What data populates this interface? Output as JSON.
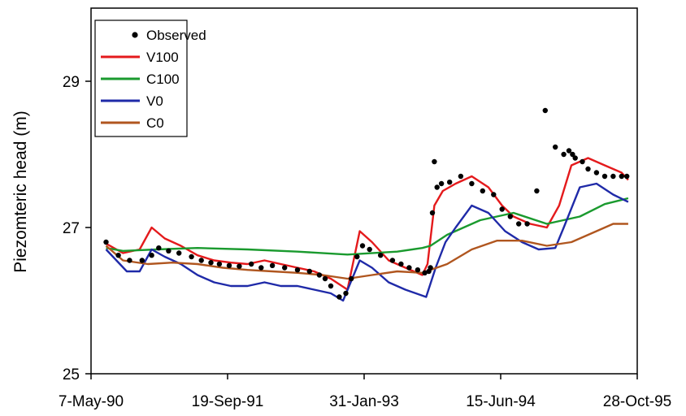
{
  "chart_data": {
    "type": "line",
    "title": "",
    "xlabel": "",
    "ylabel": "Piezomteric head (m)",
    "ylim": [
      25,
      30
    ],
    "yticks": [
      25,
      27,
      29
    ],
    "xlim": [
      "1990-05-07",
      "1995-10-28"
    ],
    "xtick_labels": [
      "7-May-90",
      "19-Sep-91",
      "31-Jan-93",
      "15-Jun-94",
      "28-Oct-95"
    ],
    "xtick_dates": [
      "1990-05-07",
      "1991-09-19",
      "1993-01-31",
      "1994-06-15",
      "1995-10-28"
    ],
    "grid": false,
    "legend_position": "top-left",
    "series": [
      {
        "name": "Observed",
        "color": "#000000",
        "style": "markers",
        "x": [
          "1990-07-01",
          "1990-08-15",
          "1990-09-25",
          "1990-11-10",
          "1990-12-15",
          "1991-01-10",
          "1991-02-15",
          "1991-03-25",
          "1991-05-10",
          "1991-06-15",
          "1991-07-20",
          "1991-08-20",
          "1991-09-25",
          "1991-11-01",
          "1991-12-15",
          "1992-01-20",
          "1992-03-01",
          "1992-04-15",
          "1992-06-01",
          "1992-07-15",
          "1992-08-20",
          "1992-09-10",
          "1992-10-01",
          "1992-11-01",
          "1992-11-25",
          "1992-12-15",
          "1993-01-05",
          "1993-01-25",
          "1993-02-20",
          "1993-04-01",
          "1993-05-15",
          "1993-06-15",
          "1993-07-15",
          "1993-08-15",
          "1993-09-10",
          "1993-09-25",
          "1993-10-01",
          "1993-10-08",
          "1993-10-15",
          "1993-10-25",
          "1993-11-10",
          "1993-12-10",
          "1994-01-20",
          "1994-03-01",
          "1994-04-10",
          "1994-05-20",
          "1994-06-20",
          "1994-07-20",
          "1994-08-20",
          "1994-09-20",
          "1994-10-25",
          "1994-11-25",
          "1995-01-01",
          "1995-02-01",
          "1995-02-20",
          "1995-03-05",
          "1995-03-15",
          "1995-04-10",
          "1995-05-01",
          "1995-06-01",
          "1995-07-01",
          "1995-08-01",
          "1995-09-01",
          "1995-09-20"
        ],
        "y": [
          26.8,
          26.62,
          26.55,
          26.55,
          26.62,
          26.72,
          26.68,
          26.65,
          26.6,
          26.55,
          26.52,
          26.5,
          26.48,
          26.47,
          26.5,
          26.45,
          26.48,
          26.45,
          26.42,
          26.4,
          26.35,
          26.3,
          26.2,
          26.05,
          26.1,
          26.3,
          26.6,
          26.75,
          26.7,
          26.62,
          26.55,
          26.5,
          26.45,
          26.42,
          26.38,
          26.4,
          26.45,
          27.2,
          27.9,
          27.55,
          27.6,
          27.62,
          27.7,
          27.6,
          27.5,
          27.45,
          27.25,
          27.15,
          27.05,
          27.05,
          27.5,
          28.6,
          28.1,
          28.0,
          28.05,
          28.0,
          27.95,
          27.9,
          27.8,
          27.75,
          27.7,
          27.7,
          27.7,
          27.7
        ]
      },
      {
        "name": "V100",
        "color": "#e41a1c",
        "style": "line",
        "x": [
          "1990-07-01",
          "1990-09-01",
          "1990-11-01",
          "1990-12-15",
          "1991-02-01",
          "1991-04-01",
          "1991-06-01",
          "1991-08-01",
          "1991-10-01",
          "1991-12-01",
          "1992-02-01",
          "1992-04-01",
          "1992-06-01",
          "1992-08-01",
          "1992-10-01",
          "1992-12-01",
          "1993-01-15",
          "1993-03-01",
          "1993-05-01",
          "1993-07-01",
          "1993-09-01",
          "1993-09-20",
          "1993-10-15",
          "1993-11-15",
          "1994-01-01",
          "1994-03-01",
          "1994-05-01",
          "1994-06-20",
          "1994-08-01",
          "1994-10-01",
          "1994-12-01",
          "1995-01-15",
          "1995-03-01",
          "1995-05-01",
          "1995-07-01",
          "1995-09-01",
          "1995-09-25"
        ],
        "y": [
          26.78,
          26.65,
          26.7,
          27.0,
          26.85,
          26.75,
          26.62,
          26.55,
          26.52,
          26.5,
          26.55,
          26.5,
          26.45,
          26.4,
          26.3,
          26.15,
          26.95,
          26.8,
          26.55,
          26.45,
          26.35,
          26.5,
          27.3,
          27.5,
          27.6,
          27.7,
          27.55,
          27.3,
          27.15,
          27.05,
          27.0,
          27.3,
          27.85,
          27.95,
          27.85,
          27.75,
          27.65
        ]
      },
      {
        "name": "C100",
        "color": "#1a9a2e",
        "style": "line",
        "x": [
          "1990-07-01",
          "1990-09-01",
          "1991-01-01",
          "1991-06-01",
          "1991-12-01",
          "1992-06-01",
          "1992-12-01",
          "1993-06-01",
          "1993-09-01",
          "1993-10-01",
          "1993-12-01",
          "1994-04-01",
          "1994-08-01",
          "1994-12-01",
          "1995-04-01",
          "1995-07-01",
          "1995-09-25"
        ],
        "y": [
          26.72,
          26.68,
          26.7,
          26.72,
          26.7,
          26.67,
          26.63,
          26.67,
          26.72,
          26.75,
          26.9,
          27.1,
          27.2,
          27.05,
          27.15,
          27.32,
          27.4
        ]
      },
      {
        "name": "V0",
        "color": "#1f2aa8",
        "style": "line",
        "x": [
          "1990-07-01",
          "1990-09-15",
          "1990-11-01",
          "1990-12-15",
          "1991-02-01",
          "1991-04-01",
          "1991-06-01",
          "1991-08-01",
          "1991-10-01",
          "1991-12-01",
          "1992-02-01",
          "1992-04-01",
          "1992-06-01",
          "1992-08-01",
          "1992-10-01",
          "1992-11-15",
          "1993-01-15",
          "1993-03-01",
          "1993-05-01",
          "1993-07-01",
          "1993-09-15",
          "1993-10-20",
          "1993-11-25",
          "1994-01-01",
          "1994-03-01",
          "1994-05-01",
          "1994-07-01",
          "1994-09-01",
          "1994-11-01",
          "1995-01-01",
          "1995-02-01",
          "1995-04-01",
          "1995-06-01",
          "1995-08-01",
          "1995-09-25"
        ],
        "y": [
          26.7,
          26.4,
          26.4,
          26.7,
          26.6,
          26.5,
          26.35,
          26.25,
          26.2,
          26.2,
          26.25,
          26.2,
          26.2,
          26.15,
          26.1,
          26.0,
          26.55,
          26.45,
          26.25,
          26.15,
          26.05,
          26.45,
          26.8,
          27.0,
          27.3,
          27.2,
          26.95,
          26.8,
          26.7,
          26.72,
          27.0,
          27.55,
          27.6,
          27.45,
          27.35
        ]
      },
      {
        "name": "C0",
        "color": "#b0561f",
        "style": "line",
        "x": [
          "1990-07-01",
          "1990-09-01",
          "1990-12-01",
          "1991-03-01",
          "1991-06-01",
          "1991-09-01",
          "1991-12-01",
          "1992-03-01",
          "1992-06-01",
          "1992-09-01",
          "1992-12-01",
          "1993-03-01",
          "1993-06-01",
          "1993-09-01",
          "1993-12-01",
          "1994-03-01",
          "1994-06-01",
          "1994-09-01",
          "1994-12-01",
          "1995-03-01",
          "1995-06-01",
          "1995-08-01",
          "1995-09-25"
        ],
        "y": [
          26.75,
          26.55,
          26.5,
          26.52,
          26.5,
          26.45,
          26.42,
          26.4,
          26.38,
          26.35,
          26.3,
          26.35,
          26.4,
          26.38,
          26.5,
          26.7,
          26.82,
          26.82,
          26.75,
          26.8,
          26.95,
          27.05,
          27.05
        ]
      }
    ]
  }
}
